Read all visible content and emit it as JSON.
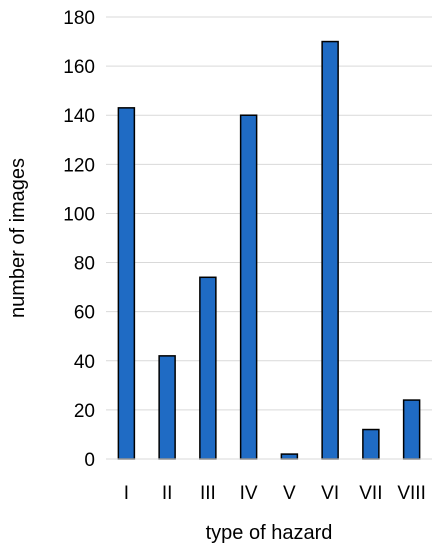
{
  "chart_data": {
    "type": "bar",
    "categories": [
      "I",
      "II",
      "III",
      "IV",
      "V",
      "VI",
      "VII",
      "VIII"
    ],
    "values": [
      143,
      42,
      74,
      140,
      2,
      170,
      12,
      24
    ],
    "xlabel": "type of hazard",
    "ylabel": "number of images",
    "ylim": [
      0,
      180
    ],
    "yticks": [
      "0",
      "20",
      "40",
      "60",
      "80",
      "100",
      "120",
      "140",
      "160",
      "180"
    ],
    "grid": true,
    "bar_color": "#1f6bc4",
    "bar_edge_color": "#000000",
    "grid_color": "#d9d9d9"
  }
}
